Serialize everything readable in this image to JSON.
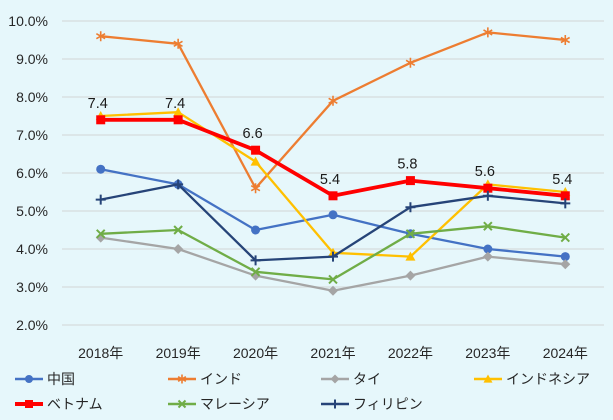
{
  "chart_data": {
    "type": "line",
    "title": "",
    "xlabel": "",
    "ylabel": "",
    "background_color": "#E6F7FB",
    "gridline_color": "#D5DBDD",
    "text_color": "#262626",
    "grid": true,
    "categories": [
      "2018年",
      "2019年",
      "2020年",
      "2021年",
      "2022年",
      "2023年",
      "2024年"
    ],
    "y_axis": {
      "min": 2.0,
      "max": 10.0,
      "step": 1.0,
      "tick_labels": [
        "10.0%",
        "9.0%",
        "8.0%",
        "7.0%",
        "6.0%",
        "5.0%",
        "4.0%",
        "3.0%",
        "2.0%"
      ]
    },
    "series": [
      {
        "key": "china",
        "name": "中国",
        "color": "#4472C4",
        "marker": "circle",
        "thick": false,
        "values": [
          6.1,
          5.7,
          4.5,
          4.9,
          4.4,
          4.0,
          3.8
        ]
      },
      {
        "key": "india",
        "name": "インド",
        "color": "#ED7D31",
        "marker": "asterisk",
        "thick": false,
        "values": [
          9.6,
          9.4,
          5.6,
          7.9,
          8.9,
          9.7,
          9.5
        ]
      },
      {
        "key": "thailand",
        "name": "タイ",
        "color": "#A5A5A5",
        "marker": "diamond",
        "thick": false,
        "values": [
          4.3,
          4.0,
          3.3,
          2.9,
          3.3,
          3.8,
          3.6
        ]
      },
      {
        "key": "indonesia",
        "name": "インドネシア",
        "color": "#FFC000",
        "marker": "triangle",
        "thick": false,
        "values": [
          7.5,
          7.6,
          6.3,
          3.9,
          3.8,
          5.7,
          5.5
        ]
      },
      {
        "key": "vietnam",
        "name": "ベトナム",
        "color": "#FF0000",
        "marker": "square",
        "thick": true,
        "values": [
          7.4,
          7.4,
          6.6,
          5.4,
          5.8,
          5.6,
          5.4
        ],
        "data_labels": [
          "7.4",
          "7.4",
          "6.6",
          "5.4",
          "5.8",
          "5.6",
          "5.4"
        ]
      },
      {
        "key": "malaysia",
        "name": "マレーシア",
        "color": "#70AD47",
        "marker": "x",
        "thick": false,
        "values": [
          4.4,
          4.5,
          3.4,
          3.2,
          4.4,
          4.6,
          4.3
        ]
      },
      {
        "key": "philippines",
        "name": "フィリピン",
        "color": "#264478",
        "marker": "plus",
        "thick": false,
        "values": [
          5.3,
          5.7,
          3.7,
          3.8,
          5.1,
          5.4,
          5.2
        ]
      }
    ],
    "legend": {
      "position": "bottom",
      "rows": [
        [
          "china",
          "india",
          "thailand",
          "indonesia"
        ],
        [
          "vietnam",
          "malaysia",
          "philippines"
        ]
      ]
    }
  }
}
